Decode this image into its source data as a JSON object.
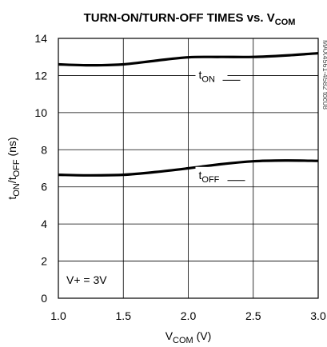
{
  "chart_data": {
    "type": "line",
    "title": "TURN-ON/TURN-OFF TIMES vs. VCOM",
    "title_parts": {
      "main": "TURN-ON/TURN-OFF TIMES vs. V",
      "sub": "COM"
    },
    "xlabel_parts": {
      "main": "V",
      "sub": "COM",
      "rest": " (V)"
    },
    "ylabel_parts": {
      "t1": "t",
      "s1": "ON",
      "mid": "/t",
      "s2": "OFF",
      "rest": " (ns)"
    },
    "xlim": [
      1.0,
      3.0
    ],
    "ylim": [
      0,
      14
    ],
    "xticks": [
      "1.0",
      "1.5",
      "2.0",
      "2.5",
      "3.0"
    ],
    "yticks": [
      "0",
      "2",
      "4",
      "6",
      "8",
      "10",
      "12",
      "14"
    ],
    "grid": true,
    "series": [
      {
        "name": "tON",
        "label_parts": {
          "main": "t",
          "sub": "ON"
        },
        "x": [
          1.0,
          1.25,
          1.5,
          1.75,
          2.0,
          2.25,
          2.5,
          2.75,
          3.0
        ],
        "y": [
          12.6,
          12.55,
          12.6,
          12.8,
          12.98,
          13.0,
          13.0,
          13.08,
          13.2
        ]
      },
      {
        "name": "tOFF",
        "label_parts": {
          "main": "t",
          "sub": "OFF"
        },
        "x": [
          1.0,
          1.25,
          1.5,
          1.75,
          2.0,
          2.25,
          2.5,
          2.75,
          3.0
        ],
        "y": [
          6.65,
          6.62,
          6.65,
          6.8,
          7.0,
          7.22,
          7.38,
          7.42,
          7.4
        ]
      }
    ],
    "annotation": "V+ = 3V",
    "side_id": "MAX4561-4582 toc08"
  }
}
